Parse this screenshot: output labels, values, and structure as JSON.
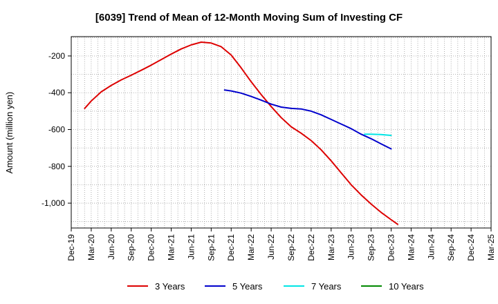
{
  "chart_data": {
    "type": "line",
    "title": "[6039]  Trend of Mean of 12-Month Moving Sum of Investing CF",
    "xlabel": "",
    "ylabel": "Amount (million yen)",
    "x_ticks": [
      "Dec-19",
      "Mar-20",
      "Jun-20",
      "Sep-20",
      "Dec-20",
      "Mar-21",
      "Jun-21",
      "Sep-21",
      "Dec-21",
      "Mar-22",
      "Jun-22",
      "Sep-22",
      "Dec-22",
      "Mar-23",
      "Jun-23",
      "Sep-23",
      "Dec-23",
      "Mar-24",
      "Jun-24",
      "Sep-24",
      "Dec-24",
      "Mar-25"
    ],
    "y_ticks": [
      -200,
      -400,
      -600,
      -800,
      -1000
    ],
    "y_tick_labels": [
      "-200",
      "-400",
      "-600",
      "-800",
      "-1,000"
    ],
    "ylim": [
      -1135,
      -95
    ],
    "grid": true,
    "legend_position": "bottom",
    "series": [
      {
        "name": "3 Years",
        "color": "#dd0000",
        "values": [
          {
            "x": 0.67,
            "y": -485
          },
          {
            "x": 1,
            "y": -445
          },
          {
            "x": 1.5,
            "y": -395
          },
          {
            "x": 2,
            "y": -360
          },
          {
            "x": 2.5,
            "y": -330
          },
          {
            "x": 3,
            "y": -305
          },
          {
            "x": 3.5,
            "y": -278
          },
          {
            "x": 4,
            "y": -250
          },
          {
            "x": 4.5,
            "y": -220
          },
          {
            "x": 5,
            "y": -190
          },
          {
            "x": 5.5,
            "y": -162
          },
          {
            "x": 6,
            "y": -140
          },
          {
            "x": 6.5,
            "y": -125
          },
          {
            "x": 7,
            "y": -130
          },
          {
            "x": 7.5,
            "y": -150
          },
          {
            "x": 8,
            "y": -195
          },
          {
            "x": 8.5,
            "y": -265
          },
          {
            "x": 9,
            "y": -340
          },
          {
            "x": 9.5,
            "y": -410
          },
          {
            "x": 10,
            "y": -475
          },
          {
            "x": 10.5,
            "y": -535
          },
          {
            "x": 11,
            "y": -585
          },
          {
            "x": 11.5,
            "y": -620
          },
          {
            "x": 12,
            "y": -660
          },
          {
            "x": 12.5,
            "y": -710
          },
          {
            "x": 13,
            "y": -770
          },
          {
            "x": 13.5,
            "y": -835
          },
          {
            "x": 14,
            "y": -900
          },
          {
            "x": 14.5,
            "y": -955
          },
          {
            "x": 15,
            "y": -1005
          },
          {
            "x": 15.5,
            "y": -1050
          },
          {
            "x": 16,
            "y": -1090
          },
          {
            "x": 16.33,
            "y": -1115
          }
        ]
      },
      {
        "name": "5 Years",
        "color": "#0000cc",
        "values": [
          {
            "x": 7.67,
            "y": -385
          },
          {
            "x": 8,
            "y": -390
          },
          {
            "x": 8.5,
            "y": -402
          },
          {
            "x": 9,
            "y": -420
          },
          {
            "x": 9.5,
            "y": -440
          },
          {
            "x": 10,
            "y": -462
          },
          {
            "x": 10.5,
            "y": -478
          },
          {
            "x": 11,
            "y": -485
          },
          {
            "x": 11.5,
            "y": -488
          },
          {
            "x": 12,
            "y": -500
          },
          {
            "x": 12.5,
            "y": -520
          },
          {
            "x": 13,
            "y": -545
          },
          {
            "x": 13.5,
            "y": -570
          },
          {
            "x": 14,
            "y": -595
          },
          {
            "x": 14.5,
            "y": -625
          },
          {
            "x": 15,
            "y": -650
          },
          {
            "x": 15.5,
            "y": -678
          },
          {
            "x": 16,
            "y": -705
          }
        ]
      },
      {
        "name": "7 Years",
        "color": "#00e5e5",
        "values": [
          {
            "x": 14.67,
            "y": -625
          },
          {
            "x": 15,
            "y": -625
          },
          {
            "x": 15.5,
            "y": -627
          },
          {
            "x": 16,
            "y": -632
          }
        ]
      },
      {
        "name": "10 Years",
        "color": "#008800",
        "values": []
      }
    ]
  }
}
